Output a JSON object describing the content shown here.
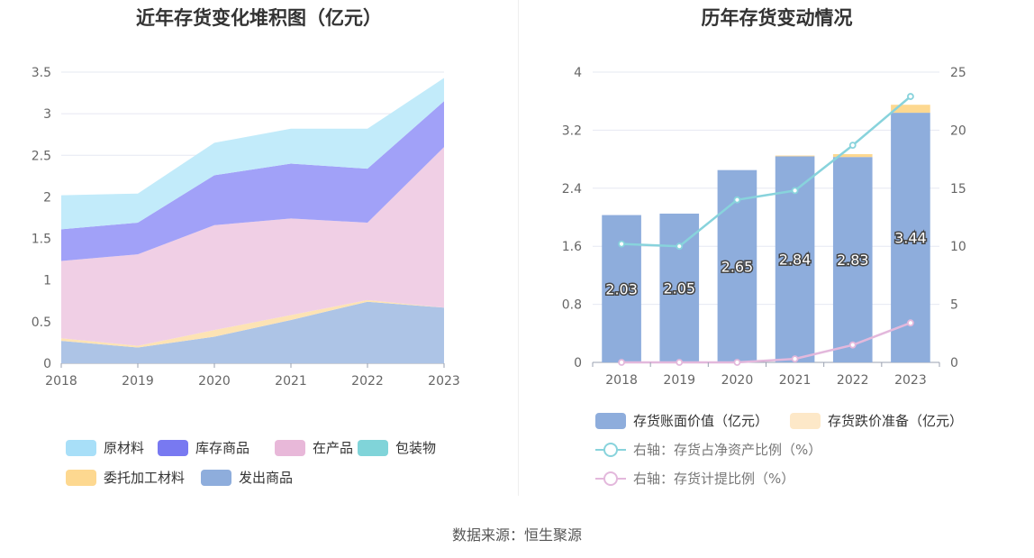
{
  "footer": {
    "source_label": "数据来源：恒生聚源"
  },
  "chart_data": [
    {
      "type": "area",
      "title": "近年存货变化堆积图（亿元）",
      "x": [
        "2018",
        "2019",
        "2020",
        "2021",
        "2022",
        "2023"
      ],
      "ylim": [
        0,
        3.5
      ],
      "yticks": [
        "0",
        "0.5",
        "1",
        "1.5",
        "2",
        "2.5",
        "3",
        "3.5"
      ],
      "stacked": true,
      "series": [
        {
          "name": "发出商品",
          "color": "#adc4e6",
          "values": [
            0.27,
            0.19,
            0.32,
            0.52,
            0.74,
            0.67
          ]
        },
        {
          "name": "委托加工材料",
          "color": "#fde3b4",
          "values": [
            0.03,
            0.02,
            0.08,
            0.06,
            0.02,
            0.0
          ]
        },
        {
          "name": "包装物",
          "color": "#80d4d9",
          "values": [
            0.0,
            0.0,
            0.0,
            0.0,
            0.0,
            0.0
          ]
        },
        {
          "name": "在产品",
          "color": "#f0cfe5",
          "values": [
            0.93,
            1.1,
            1.26,
            1.16,
            0.93,
            1.93
          ]
        },
        {
          "name": "库存商品",
          "color": "#a1a1f8",
          "values": [
            0.38,
            0.38,
            0.6,
            0.66,
            0.65,
            0.55
          ]
        },
        {
          "name": "原材料",
          "color": "#c2ebfa",
          "values": [
            0.41,
            0.35,
            0.39,
            0.42,
            0.48,
            0.28
          ]
        }
      ],
      "legend": [
        {
          "name": "原材料",
          "color": "#a8dff8"
        },
        {
          "name": "库存商品",
          "color": "#7879f1"
        },
        {
          "name": "在产品",
          "color": "#e8b8d9"
        },
        {
          "name": "包装物",
          "color": "#80d4d9"
        },
        {
          "name": "委托加工材料",
          "color": "#fdd890"
        },
        {
          "name": "发出商品",
          "color": "#8eaddc"
        }
      ],
      "legend_position": "bottom",
      "grid": true
    },
    {
      "type": "bar",
      "title": "历年存货变动情况",
      "categories": [
        "2018",
        "2019",
        "2020",
        "2021",
        "2022",
        "2023"
      ],
      "ylim": [
        0,
        4
      ],
      "yticks": [
        "0",
        "0.8",
        "1.6",
        "2.4",
        "3.2",
        "4"
      ],
      "y2lim": [
        0,
        25
      ],
      "y2ticks": [
        "0",
        "5",
        "10",
        "15",
        "20",
        "25"
      ],
      "series": [
        {
          "name": "存货账面价值（亿元）",
          "type": "bar",
          "color": "#8eaddc",
          "values": [
            2.03,
            2.05,
            2.65,
            2.84,
            2.83,
            3.44
          ],
          "labels": [
            "2.03",
            "2.05",
            "2.65",
            "2.84",
            "2.83",
            "3.44"
          ]
        },
        {
          "name": "存货跌价准备（亿元）",
          "type": "bar",
          "stacked_on": "存货账面价值（亿元）",
          "color": "#fdd890",
          "values": [
            0.0,
            0.0,
            0.0,
            0.01,
            0.04,
            0.11
          ]
        },
        {
          "name": "右轴：存货占净资产比例（%）",
          "type": "line",
          "axis": "right",
          "color": "#88d3dc",
          "values": [
            10.2,
            10.0,
            14.0,
            14.8,
            18.7,
            22.9
          ]
        },
        {
          "name": "右轴：存货计提比例（%）",
          "type": "line",
          "axis": "right",
          "color": "#e3b8dc",
          "values": [
            0.0,
            0.0,
            0.0,
            0.3,
            1.5,
            3.4
          ]
        }
      ],
      "legend_position": "bottom",
      "grid": true
    }
  ]
}
